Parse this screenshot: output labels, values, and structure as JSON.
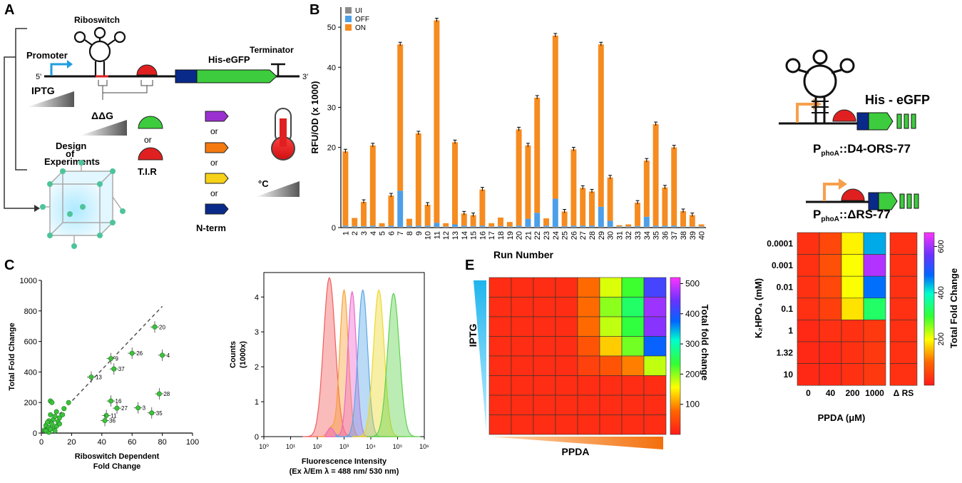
{
  "panels": {
    "A": "A",
    "B": "B",
    "C": "C",
    "E": "E"
  },
  "panelA": {
    "riboswitch": "Riboswitch",
    "promoter": "Promoter",
    "five_prime": "5'",
    "three_prime": "3'",
    "gene": "His-eGFP",
    "terminator": "Terminator",
    "iptg": "IPTG",
    "ddg": "ΔΔG",
    "or": "or",
    "tir": "T.I.R",
    "nterm": "N-term",
    "degc": "°C",
    "doe": [
      "Design",
      "of",
      "Experiments"
    ],
    "colors": {
      "tag_purple": "#9b30d0",
      "tag_orange": "#f47a10",
      "tag_yellow": "#f7d117",
      "tag_navy": "#0a2a8a",
      "rbs_green": "#3dcc3d",
      "rbs_red": "#e02020"
    }
  },
  "chart_data": [
    {
      "type": "bar",
      "stacked": true,
      "xlabel": "Run Number",
      "ylabel": "RFU/OD (x 1000)",
      "ylim": [
        0,
        55
      ],
      "yticks": [
        0,
        20,
        30,
        40,
        50
      ],
      "legend": "top-left",
      "categories": [
        "1",
        "2",
        "3",
        "4",
        "5",
        "6",
        "7",
        "8",
        "9",
        "10",
        "11",
        "12",
        "13",
        "14",
        "15",
        "16",
        "17",
        "18",
        "19",
        "20",
        "21",
        "22",
        "23",
        "24",
        "25",
        "26",
        "27",
        "28",
        "29",
        "30",
        "31",
        "32",
        "33",
        "34",
        "35",
        "36",
        "37",
        "38",
        "39",
        "40"
      ],
      "series": [
        {
          "name": "UI",
          "color": "#8c8c8c",
          "values": [
            0.2,
            0.2,
            0.2,
            0.2,
            0.2,
            0.2,
            0.2,
            0.2,
            0.2,
            0.2,
            0.2,
            0.2,
            0.2,
            0.2,
            0.2,
            0.2,
            0.2,
            0.2,
            0.2,
            0.2,
            0.2,
            0.2,
            0.2,
            0.2,
            0.2,
            0.2,
            0.2,
            0.2,
            0.2,
            0.2,
            0.2,
            0.2,
            0.2,
            0.2,
            0.2,
            0.2,
            0.2,
            0.2,
            0.2,
            0.2
          ]
        },
        {
          "name": "OFF",
          "color": "#4c9fe8",
          "values": [
            0.3,
            0.2,
            0.2,
            0.3,
            0.1,
            0.3,
            9,
            0.3,
            0.3,
            0.3,
            1,
            0.1,
            0.6,
            0.3,
            0.2,
            0.3,
            0.1,
            0.2,
            0.1,
            0.3,
            2,
            3.5,
            0.3,
            7,
            0.2,
            0.3,
            0.3,
            0.3,
            5,
            1.5,
            0.1,
            0.1,
            0.2,
            2.5,
            0.3,
            0.3,
            0.3,
            0.1,
            0.1,
            0.1
          ]
        },
        {
          "name": "ON",
          "color": "#f68b1f",
          "values": [
            18.5,
            2,
            6,
            20,
            0.8,
            7.5,
            36.5,
            1.7,
            23,
            5.2,
            50.5,
            0.8,
            20.5,
            3,
            2.7,
            9,
            0.8,
            2.1,
            1.1,
            24,
            18.3,
            28.7,
            1.8,
            40.7,
            3.6,
            19,
            9.4,
            8.5,
            40.5,
            10.8,
            0.3,
            0.5,
            5.8,
            14,
            25.3,
            9.5,
            19.5,
            3.8,
            2.8,
            0.5
          ]
        }
      ]
    },
    {
      "type": "scatter",
      "xlabel": "Riboswitch Dependent Fold Change",
      "ylabel": "Total Fold Change",
      "xlim": [
        0,
        100
      ],
      "ylim": [
        0,
        1000
      ],
      "xticks": [
        0,
        20,
        40,
        60,
        80,
        100
      ],
      "yticks": [
        0,
        200,
        400,
        600,
        800,
        1000
      ],
      "labeled_points": [
        {
          "label": "20",
          "x": 75,
          "y": 695
        },
        {
          "label": "4",
          "x": 80,
          "y": 510
        },
        {
          "label": "26",
          "x": 60,
          "y": 523
        },
        {
          "label": "9",
          "x": 46,
          "y": 488
        },
        {
          "label": "37",
          "x": 48,
          "y": 420
        },
        {
          "label": "13",
          "x": 33,
          "y": 367
        },
        {
          "label": "28",
          "x": 78,
          "y": 257
        },
        {
          "label": "16",
          "x": 46,
          "y": 210
        },
        {
          "label": "27",
          "x": 50,
          "y": 163
        },
        {
          "label": "3",
          "x": 64,
          "y": 165
        },
        {
          "label": "35",
          "x": 73,
          "y": 132
        },
        {
          "label": "11",
          "x": 43,
          "y": 115
        },
        {
          "label": "36",
          "x": 42,
          "y": 82
        }
      ],
      "points": [
        [
          2,
          20
        ],
        [
          3,
          50
        ],
        [
          4,
          10
        ],
        [
          5,
          35
        ],
        [
          5,
          80
        ],
        [
          6,
          120
        ],
        [
          6,
          210
        ],
        [
          7,
          200
        ],
        [
          7,
          60
        ],
        [
          8,
          30
        ],
        [
          8,
          90
        ],
        [
          9,
          110
        ],
        [
          10,
          45
        ],
        [
          10,
          140
        ],
        [
          11,
          75
        ],
        [
          12,
          100
        ],
        [
          14,
          120
        ],
        [
          15,
          160
        ],
        [
          18,
          200
        ],
        [
          5,
          5
        ],
        [
          3,
          15
        ],
        [
          6,
          25
        ],
        [
          9,
          15
        ],
        [
          12,
          60
        ],
        [
          4,
          70
        ]
      ],
      "trend": [
        [
          0,
          0
        ],
        [
          80,
          830
        ]
      ]
    },
    {
      "type": "area",
      "xlabel": "Fluorescence Intensity",
      "xlabel2": "(Ex λ/Em λ = 488 nm/ 530 nm)",
      "ylabel": "Counts",
      "ylabel2": "(1000x)",
      "x_scale": "log",
      "xticks": [
        "10⁰",
        "10¹",
        "10²",
        "10³",
        "10⁴",
        "10⁵",
        "10⁶"
      ],
      "yticks": [
        0,
        1,
        2,
        3,
        4
      ],
      "ylim": [
        0,
        4.7
      ],
      "series": [
        {
          "color": "#f25c5c",
          "peak_log": 2.45,
          "height": 4.55,
          "width": 0.22
        },
        {
          "color": "#f9a03a",
          "peak_log": 3.0,
          "height": 4.2,
          "width": 0.16
        },
        {
          "color": "#ee66cc",
          "peak_log": 3.3,
          "height": 4.15,
          "width": 0.16
        },
        {
          "color": "#5aa8e6",
          "peak_log": 3.7,
          "height": 4.2,
          "width": 0.18
        },
        {
          "color": "#ecd82a",
          "peak_log": 4.3,
          "height": 4.2,
          "width": 0.2
        },
        {
          "color": "#5cd14c",
          "peak_log": 4.85,
          "height": 4.1,
          "width": 0.22
        }
      ]
    },
    {
      "type": "heatmap",
      "xlabel": "PPDA",
      "ylabel": "IPTG",
      "colorbar_label": "Total fold change",
      "colorbar_ticks": [
        100,
        200,
        300,
        400,
        500
      ],
      "values": [
        [
          20,
          20,
          20,
          20,
          80,
          170,
          230,
          420
        ],
        [
          20,
          20,
          20,
          20,
          80,
          200,
          260,
          470
        ],
        [
          20,
          20,
          20,
          20,
          80,
          180,
          240,
          460
        ],
        [
          20,
          20,
          20,
          20,
          60,
          130,
          210,
          380
        ],
        [
          20,
          20,
          20,
          20,
          40,
          60,
          90,
          180
        ],
        [
          20,
          20,
          20,
          20,
          20,
          20,
          20,
          20
        ],
        [
          20,
          20,
          20,
          20,
          20,
          20,
          20,
          20
        ],
        [
          20,
          20,
          20,
          20,
          20,
          20,
          20,
          20
        ]
      ]
    },
    {
      "type": "heatmap",
      "xlabel": "PPDA (μM)",
      "ylabel": "K₂HPO₄ (mM)",
      "colorbar_label": "Total Fold Change",
      "colorbar_ticks": [
        200,
        400,
        600
      ],
      "x_categories": [
        "0",
        "40",
        "200",
        "1000"
      ],
      "y_categories": [
        "0.0001",
        "0.001",
        "0.01",
        "0.1",
        "1",
        "1.32",
        "10"
      ],
      "extra_column_label": "Δ RS",
      "values": [
        [
          30,
          60,
          190,
          440
        ],
        [
          30,
          70,
          200,
          610
        ],
        [
          30,
          60,
          200,
          470
        ],
        [
          30,
          50,
          180,
          330
        ],
        [
          20,
          30,
          30,
          40
        ],
        [
          20,
          20,
          30,
          40
        ],
        [
          20,
          20,
          30,
          40
        ]
      ],
      "extra_column": [
        30,
        30,
        30,
        30,
        30,
        30,
        30
      ]
    }
  ],
  "panelD": {
    "gene_label": "His - eGFP",
    "construct1_main": "P",
    "construct1_sub": "phoA",
    "construct1_rest": "::D4-ORS-77",
    "construct2_main": "P",
    "construct2_sub": "phoA",
    "construct2_rest": "::ΔRS-77"
  }
}
